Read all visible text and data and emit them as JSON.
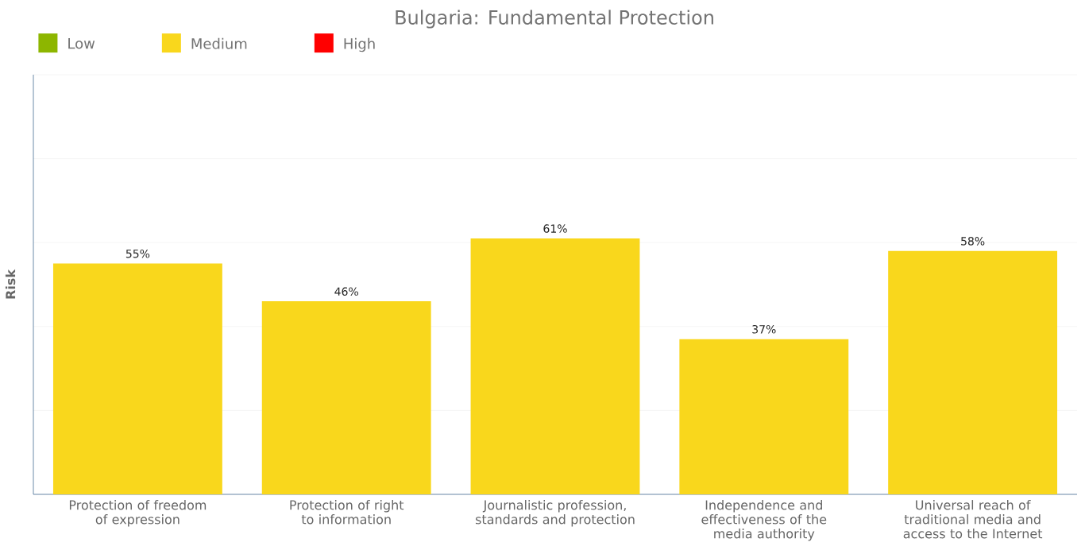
{
  "chart_data": {
    "type": "bar",
    "title": "Bulgaria: Fundamental Protection",
    "ylabel": "Risk",
    "categories": [
      "Protection of freedom of expression",
      "Protection of right to information",
      "Journalistic profession, standards and protection",
      "Independence and effectiveness of the media authority",
      "Universal reach of traditional media and access to the Internet"
    ],
    "series": [
      {
        "name": "Low",
        "color": "#8db600",
        "values": [
          null,
          null,
          null,
          null,
          null
        ]
      },
      {
        "name": "Medium",
        "color": "#f9d71c",
        "values": [
          55,
          46,
          61,
          37,
          58
        ],
        "value_labels": [
          "55%",
          "46%",
          "61%",
          "37%",
          "58%"
        ]
      },
      {
        "name": "High",
        "color": "#ff0000",
        "values": [
          null,
          null,
          null,
          null,
          null
        ]
      }
    ],
    "stacked": true,
    "ylim": [
      0,
      100
    ],
    "yticks": [
      {
        "value": 0,
        "label": null
      },
      {
        "value": 20,
        "label": null
      },
      {
        "value": 40,
        "label": null
      },
      {
        "value": 60,
        "label": null
      },
      {
        "value": 80,
        "label": null
      },
      {
        "value": 100,
        "label": null
      }
    ],
    "tick_labels": "x",
    "grid": "y",
    "legend": "top left"
  }
}
